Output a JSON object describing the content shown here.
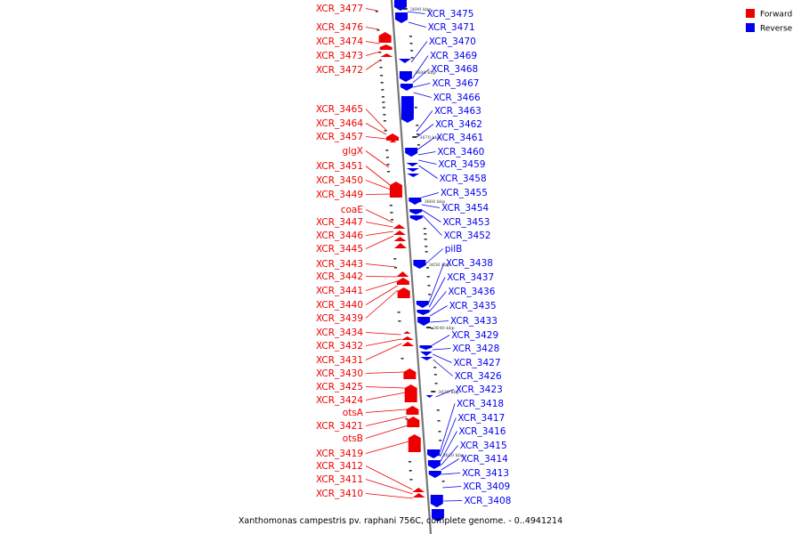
{
  "colors": {
    "forward": "#ee0000",
    "reverse": "#0000ee",
    "axis": "#777777",
    "tick": "#333333"
  },
  "legend": [
    {
      "label": "Forward",
      "strand": "forward"
    },
    {
      "label": "Reverse",
      "strand": "reverse"
    }
  ],
  "caption": "Xanthomonas campestris pv. raphani 756C, complete genome. - 0..4941214",
  "scale": [
    "3690 kbp",
    "3680 kbp",
    "3670 kbp",
    "3660 kbp",
    "3650 kbp",
    "3640 kbp",
    "3630 kbp",
    "3620 kbp"
  ],
  "genes": {
    "forward": [
      "XCR_3477",
      "XCR_3476",
      "XCR_3474",
      "XCR_3473",
      "XCR_3472",
      "XCR_3465",
      "XCR_3464",
      "XCR_3457",
      "glgX",
      "XCR_3451",
      "XCR_3450",
      "XCR_3449",
      "coaE",
      "XCR_3447",
      "XCR_3446",
      "XCR_3445",
      "XCR_3443",
      "XCR_3442",
      "XCR_3441",
      "XCR_3440",
      "XCR_3439",
      "XCR_3434",
      "XCR_3432",
      "XCR_3431",
      "XCR_3430",
      "XCR_3425",
      "XCR_3424",
      "otsA",
      "XCR_3421",
      "otsB",
      "XCR_3419",
      "XCR_3412",
      "XCR_3411",
      "XCR_3410"
    ],
    "reverse": [
      "XCR_3475",
      "XCR_3471",
      "XCR_3470",
      "XCR_3469",
      "XCR_3468",
      "XCR_3467",
      "XCR_3466",
      "XCR_3463",
      "XCR_3462",
      "XCR_3461",
      "XCR_3460",
      "XCR_3459",
      "XCR_3458",
      "XCR_3455",
      "XCR_3454",
      "XCR_3453",
      "XCR_3452",
      "pilB",
      "XCR_3438",
      "XCR_3437",
      "XCR_3436",
      "XCR_3435",
      "XCR_3433",
      "XCR_3429",
      "XCR_3428",
      "XCR_3427",
      "XCR_3426",
      "XCR_3423",
      "XCR_3418",
      "XCR_3417",
      "XCR_3416",
      "XCR_3415",
      "XCR_3414",
      "XCR_3413",
      "XCR_3409",
      "XCR_3408"
    ]
  }
}
